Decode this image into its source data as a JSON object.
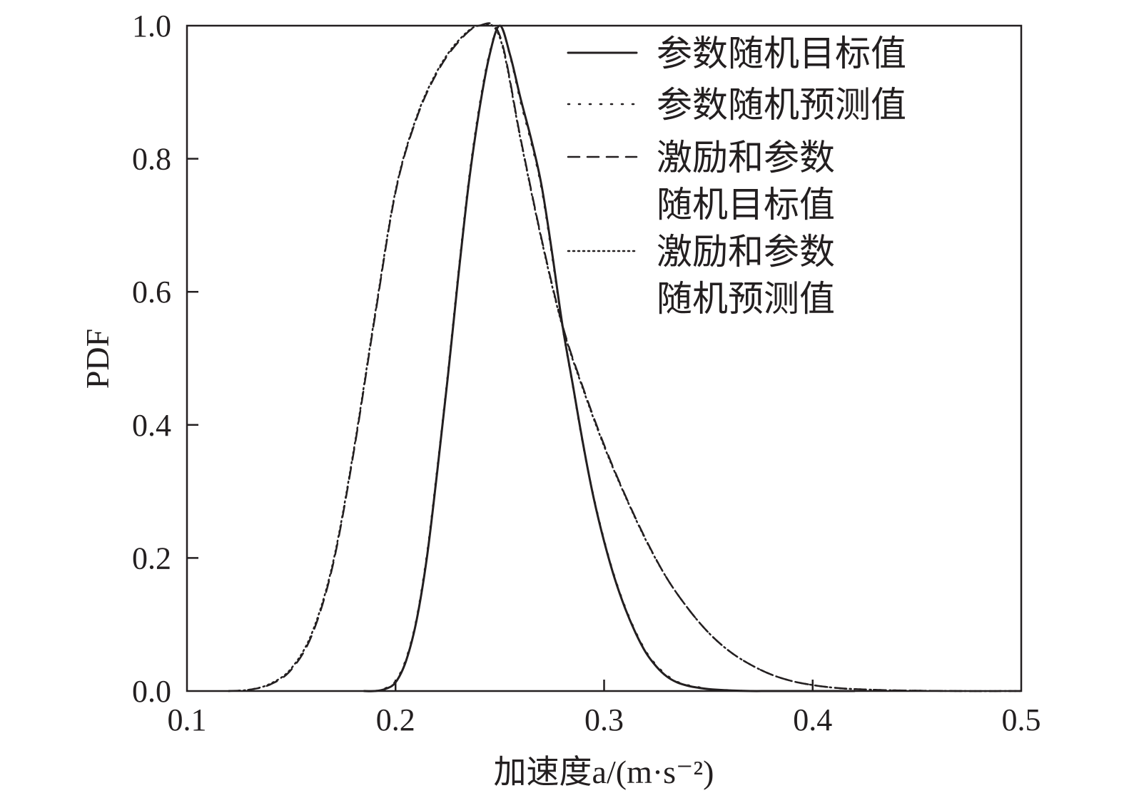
{
  "chart_data": {
    "type": "line",
    "xlabel": "加速度a/(m·s⁻²)",
    "ylabel": "PDF",
    "xlim": [
      0.1,
      0.5
    ],
    "ylim": [
      0.0,
      1.0
    ],
    "xticks": [
      0.1,
      0.2,
      0.3,
      0.4,
      0.5
    ],
    "xtick_labels": [
      "0.1",
      "0.2",
      "0.3",
      "0.4",
      "0.5"
    ],
    "yticks": [
      0.0,
      0.2,
      0.4,
      0.6,
      0.8,
      1.0
    ],
    "ytick_labels": [
      "0.0",
      "0.2",
      "0.4",
      "0.6",
      "0.8",
      "1.0"
    ],
    "grid": false,
    "legend_position": "top-right",
    "series": [
      {
        "name": "参数随机目标值",
        "style": "solid",
        "color": "#231f20",
        "x": [
          0.185,
          0.19,
          0.195,
          0.2,
          0.205,
          0.21,
          0.215,
          0.22,
          0.225,
          0.23,
          0.235,
          0.24,
          0.245,
          0.25,
          0.255,
          0.26,
          0.265,
          0.27,
          0.275,
          0.28,
          0.285,
          0.29,
          0.295,
          0.3,
          0.305,
          0.31,
          0.315,
          0.32,
          0.325,
          0.33,
          0.335,
          0.34,
          0.345,
          0.35,
          0.36,
          0.37,
          0.38,
          0.4,
          0.42
        ],
        "y": [
          0.0,
          0.0,
          0.003,
          0.013,
          0.045,
          0.105,
          0.2,
          0.33,
          0.47,
          0.62,
          0.76,
          0.87,
          0.955,
          1.0,
          0.955,
          0.89,
          0.83,
          0.76,
          0.66,
          0.55,
          0.46,
          0.37,
          0.29,
          0.225,
          0.17,
          0.125,
          0.088,
          0.058,
          0.037,
          0.022,
          0.013,
          0.008,
          0.005,
          0.003,
          0.001,
          0.0,
          0.0,
          0.0,
          0.0
        ]
      },
      {
        "name": "参数随机预测值",
        "style": "dotted",
        "color": "#231f20",
        "x": [
          0.185,
          0.19,
          0.195,
          0.2,
          0.205,
          0.21,
          0.215,
          0.22,
          0.225,
          0.23,
          0.235,
          0.24,
          0.245,
          0.25,
          0.255,
          0.26,
          0.265,
          0.27,
          0.275,
          0.28,
          0.285,
          0.29,
          0.295,
          0.3,
          0.305,
          0.31,
          0.315,
          0.32,
          0.325,
          0.33,
          0.335,
          0.34,
          0.345,
          0.35,
          0.36,
          0.37,
          0.38,
          0.4,
          0.42
        ],
        "y": [
          0.0,
          0.0,
          0.004,
          0.015,
          0.048,
          0.108,
          0.205,
          0.335,
          0.475,
          0.625,
          0.765,
          0.875,
          0.958,
          1.0,
          0.953,
          0.885,
          0.825,
          0.755,
          0.655,
          0.548,
          0.458,
          0.368,
          0.292,
          0.227,
          0.172,
          0.127,
          0.09,
          0.06,
          0.039,
          0.024,
          0.014,
          0.009,
          0.006,
          0.003,
          0.001,
          0.0,
          0.0,
          0.0,
          0.0
        ]
      },
      {
        "name": "激励和参数随机目标值",
        "style": "dashed",
        "color": "#231f20",
        "x": [
          0.12,
          0.13,
          0.14,
          0.15,
          0.16,
          0.17,
          0.18,
          0.19,
          0.2,
          0.21,
          0.22,
          0.23,
          0.24,
          0.25,
          0.26,
          0.27,
          0.28,
          0.29,
          0.3,
          0.31,
          0.32,
          0.33,
          0.34,
          0.35,
          0.36,
          0.37,
          0.38,
          0.39,
          0.4,
          0.41,
          0.42,
          0.44,
          0.47,
          0.5
        ],
        "y": [
          0.0,
          0.002,
          0.01,
          0.032,
          0.085,
          0.19,
          0.36,
          0.56,
          0.75,
          0.86,
          0.93,
          0.975,
          1.0,
          0.985,
          0.83,
          0.68,
          0.55,
          0.455,
          0.37,
          0.295,
          0.228,
          0.17,
          0.125,
          0.088,
          0.06,
          0.04,
          0.025,
          0.015,
          0.009,
          0.005,
          0.003,
          0.001,
          0.0,
          0.0
        ]
      },
      {
        "name": "激励和参数随机预测值",
        "style": "dotted-fine",
        "color": "#231f20",
        "x": [
          0.12,
          0.13,
          0.14,
          0.15,
          0.16,
          0.17,
          0.18,
          0.19,
          0.2,
          0.21,
          0.22,
          0.23,
          0.24,
          0.25,
          0.26,
          0.27,
          0.28,
          0.29,
          0.3,
          0.31,
          0.32,
          0.33,
          0.34,
          0.35,
          0.36,
          0.37,
          0.38,
          0.39,
          0.4,
          0.41,
          0.42,
          0.44,
          0.47,
          0.5
        ],
        "y": [
          0.0,
          0.002,
          0.011,
          0.034,
          0.088,
          0.193,
          0.363,
          0.563,
          0.752,
          0.862,
          0.932,
          0.977,
          1.0,
          0.982,
          0.828,
          0.678,
          0.548,
          0.453,
          0.368,
          0.294,
          0.227,
          0.17,
          0.125,
          0.088,
          0.06,
          0.04,
          0.025,
          0.015,
          0.009,
          0.005,
          0.003,
          0.001,
          0.0,
          0.0
        ]
      }
    ]
  },
  "legend": {
    "items": [
      {
        "lines": [
          "参数随机目标值"
        ]
      },
      {
        "lines": [
          "参数随机预测值"
        ]
      },
      {
        "lines": [
          "激励和参数",
          "随机目标值"
        ]
      },
      {
        "lines": [
          "激励和参数",
          "随机预测值"
        ]
      }
    ]
  }
}
